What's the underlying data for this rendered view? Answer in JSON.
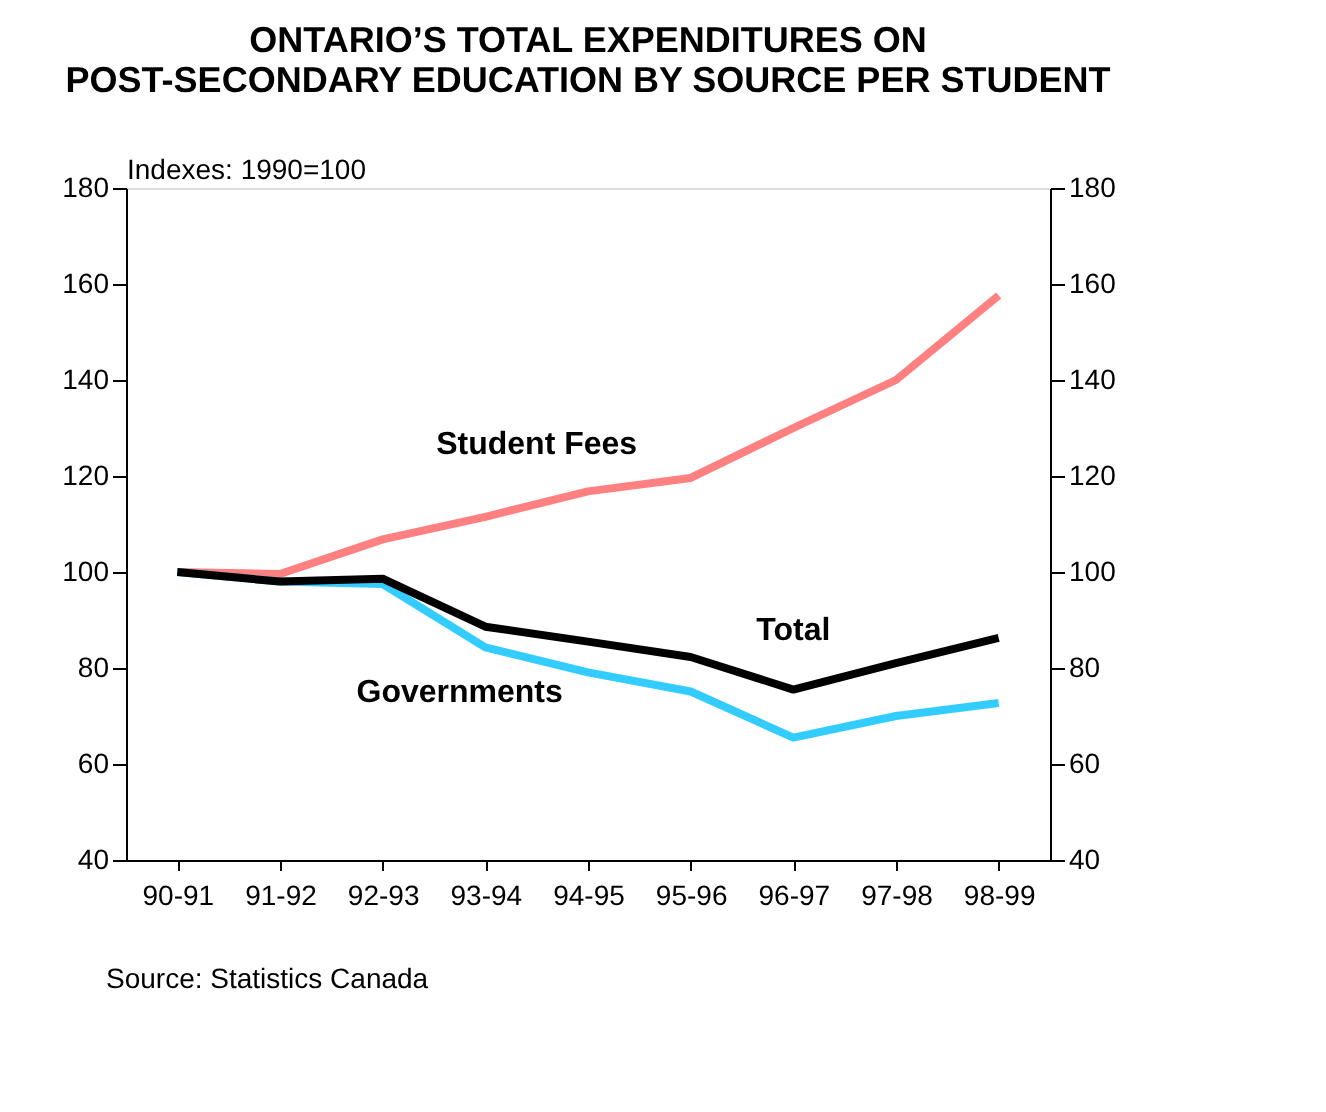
{
  "chart_data": {
    "type": "line",
    "title": "ONTARIO’S TOTAL EXPENDITURES ON POST-SECONDARY EDUCATION BY SOURCE PER STUDENT",
    "ylabel": "Indexes: 1990=100",
    "categories": [
      "90-91",
      "91-92",
      "92-93",
      "93-94",
      "94-95",
      "95-96",
      "96-97",
      "97-98",
      "98-99"
    ],
    "series": [
      {
        "name": "Student Fees",
        "color": "#ff8080",
        "values": [
          100,
          99.6,
          106.8,
          111.5,
          116.8,
          119.6,
          130,
          140,
          157.6
        ]
      },
      {
        "name": "Total",
        "color": "#000000",
        "values": [
          100,
          98,
          98.6,
          88.6,
          85.5,
          82.3,
          75.5,
          81,
          86.3
        ]
      },
      {
        "name": "Governments",
        "color": "#33ccff",
        "values": [
          100,
          98,
          97.5,
          84.3,
          79.1,
          75.1,
          65.5,
          70,
          72.7
        ]
      }
    ],
    "ylim": [
      40,
      180
    ],
    "yticks": [
      40,
      60,
      80,
      100,
      120,
      140,
      160,
      180
    ],
    "y2lim": [
      40,
      180
    ],
    "y2ticks": [
      40,
      60,
      80,
      100,
      120,
      140,
      160,
      180
    ],
    "grid": false,
    "legend": false,
    "marker": "none",
    "line_style": "solid",
    "annotations": [
      "Source: Statistics Canada"
    ]
  }
}
